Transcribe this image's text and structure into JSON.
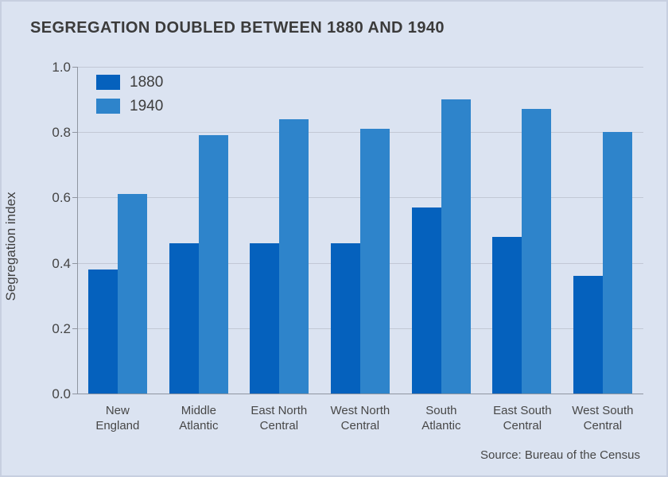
{
  "title": "SEGREGATION DOUBLED BETWEEN 1880 AND 1940",
  "source": "Source: Bureau of the Census",
  "ylabel": "Segregation index",
  "colors": {
    "background": "#dbe3f1",
    "series_1880": "#0561bd",
    "series_1940": "#2e84cb",
    "gridline": "#c2c8d5",
    "axis": "#8f95a0",
    "title_text": "#3b3b3b",
    "label_text": "#474747"
  },
  "chart_data": {
    "type": "bar",
    "title": "SEGREGATION DOUBLED BETWEEN 1880 AND 1940",
    "categories": [
      "New England",
      "Middle Atlantic",
      "East North Central",
      "West North Central",
      "South Atlantic",
      "East South Central",
      "West South Central"
    ],
    "category_lines": [
      [
        "New",
        "England"
      ],
      [
        "Middle",
        "Atlantic"
      ],
      [
        "East North",
        "Central"
      ],
      [
        "West North",
        "Central"
      ],
      [
        "South",
        "Atlantic"
      ],
      [
        "East South",
        "Central"
      ],
      [
        "West South",
        "Central"
      ]
    ],
    "series": [
      {
        "name": "1880",
        "color": "#0561bd",
        "values": [
          0.38,
          0.46,
          0.46,
          0.46,
          0.57,
          0.48,
          0.36
        ]
      },
      {
        "name": "1940",
        "color": "#2e84cb",
        "values": [
          0.61,
          0.79,
          0.84,
          0.81,
          0.9,
          0.87,
          0.8
        ]
      }
    ],
    "xlabel": "",
    "ylabel": "Segregation index",
    "ylim": [
      0,
      1.0
    ],
    "yticks": [
      0.0,
      0.2,
      0.4,
      0.6,
      0.8,
      1.0
    ],
    "grid": true,
    "legend_position": "top-left",
    "source": "Source: Bureau of the Census"
  }
}
